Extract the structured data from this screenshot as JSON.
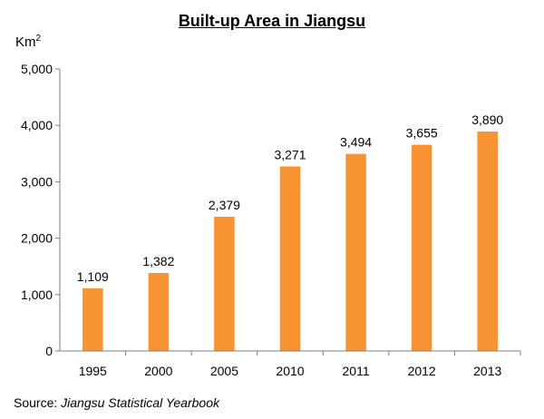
{
  "chart_data": {
    "type": "bar",
    "title": "Built-up Area in Jiangsu",
    "ylabel": "Km",
    "ylabel_superscript": "2",
    "categories": [
      "1995",
      "2000",
      "2005",
      "2010",
      "2011",
      "2012",
      "2013"
    ],
    "values": [
      1109,
      1382,
      2379,
      3271,
      3494,
      3655,
      3890
    ],
    "data_labels": [
      "1,109",
      "1,382",
      "2,379",
      "3,271",
      "3,494",
      "3,655",
      "3,890"
    ],
    "yticks": [
      "0",
      "1,000",
      "2,000",
      "3,000",
      "4,000",
      "5,000"
    ],
    "ylim": [
      0,
      5000
    ],
    "bar_color": "#F79332",
    "grid": false,
    "legend": "none"
  },
  "source": {
    "prefix": "Source: ",
    "name": "Jiangsu Statistical Yearbook"
  }
}
